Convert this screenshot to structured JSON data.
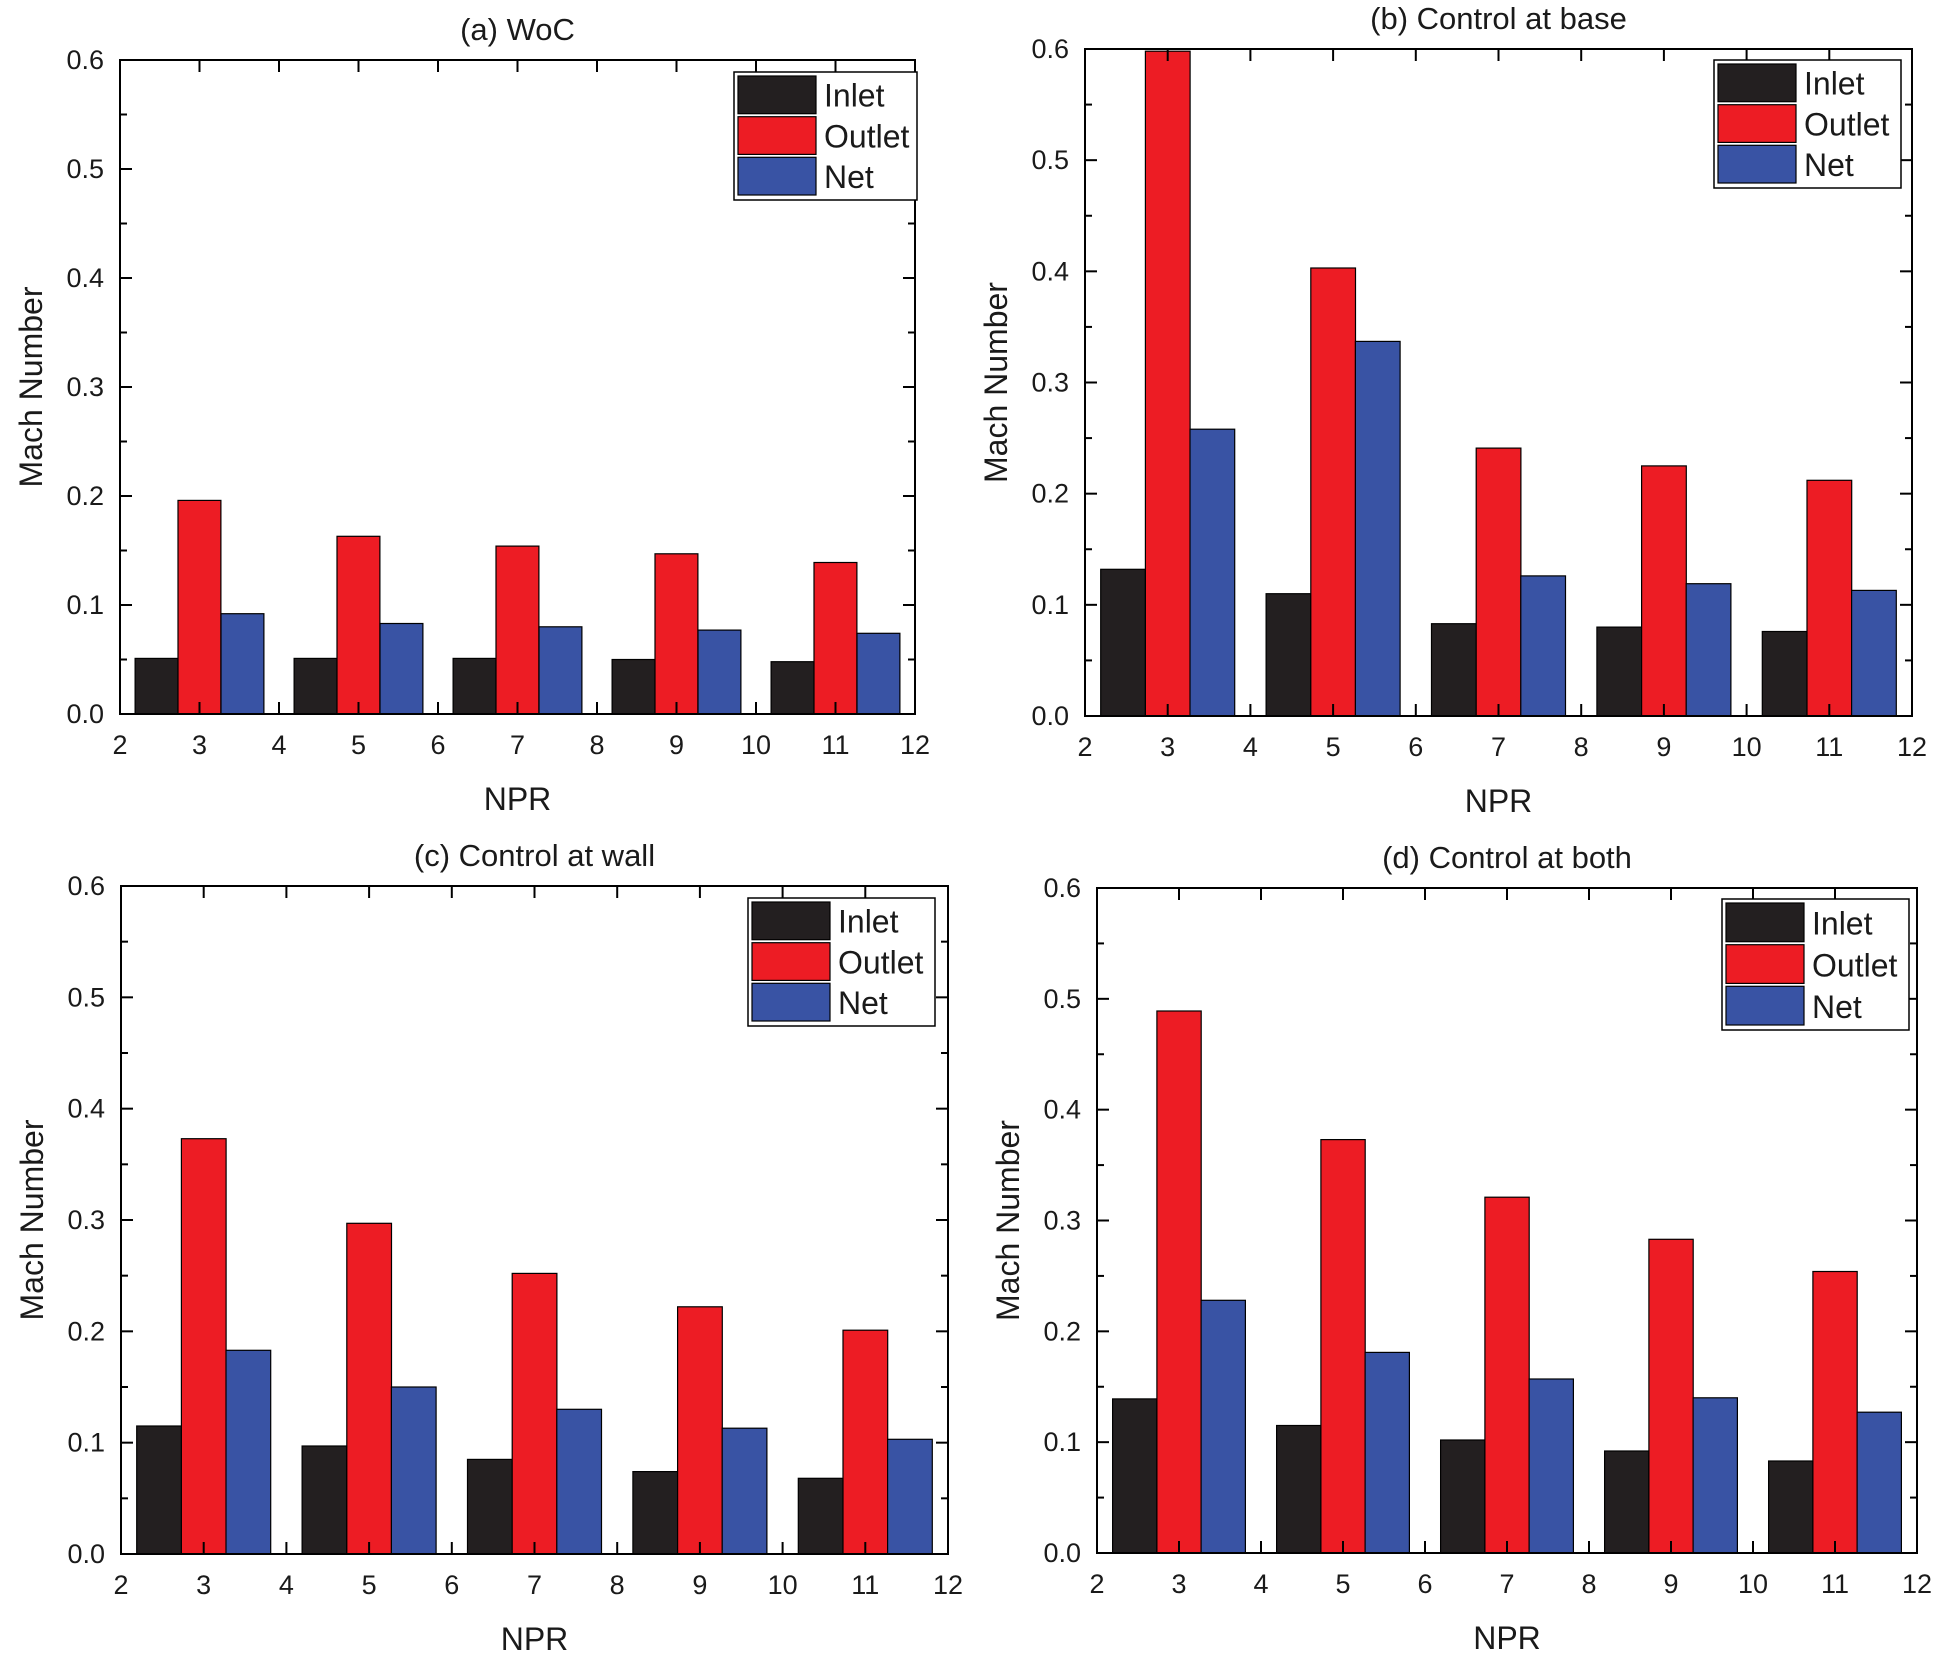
{
  "chart_data": [
    {
      "type": "bar",
      "title": "(a) WoC",
      "xlabel": "NPR",
      "ylabel": "Mach Number",
      "xlim": [
        2,
        12
      ],
      "ylim": [
        0,
        0.6
      ],
      "xticks": [
        "2",
        "3",
        "4",
        "5",
        "6",
        "7",
        "8",
        "9",
        "10",
        "11",
        "12"
      ],
      "yticks": [
        "0.0",
        "0.1",
        "0.2",
        "0.3",
        "0.4",
        "0.5",
        "0.6"
      ],
      "categories": [
        "3",
        "5",
        "7",
        "9",
        "11"
      ],
      "legend_position": "top-right",
      "series": [
        {
          "name": "Inlet",
          "color": "#231f20",
          "values": [
            0.051,
            0.051,
            0.051,
            0.05,
            0.048
          ]
        },
        {
          "name": "Outlet",
          "color": "#ed1c24",
          "values": [
            0.196,
            0.163,
            0.154,
            0.147,
            0.139
          ]
        },
        {
          "name": "Net",
          "color": "#3953a4",
          "values": [
            0.092,
            0.083,
            0.08,
            0.077,
            0.074
          ]
        }
      ]
    },
    {
      "type": "bar",
      "title": "(b) Control at base",
      "xlabel": "NPR",
      "ylabel": "Mach Number",
      "xlim": [
        2,
        12
      ],
      "ylim": [
        0,
        0.6
      ],
      "xticks": [
        "2",
        "3",
        "4",
        "5",
        "6",
        "7",
        "8",
        "9",
        "10",
        "11",
        "12"
      ],
      "yticks": [
        "0.0",
        "0.1",
        "0.2",
        "0.3",
        "0.4",
        "0.5",
        "0.6"
      ],
      "categories": [
        "3",
        "5",
        "7",
        "9",
        "11"
      ],
      "legend_position": "top-right",
      "series": [
        {
          "name": "Inlet",
          "color": "#231f20",
          "values": [
            0.132,
            0.11,
            0.083,
            0.08,
            0.076
          ]
        },
        {
          "name": "Outlet",
          "color": "#ed1c24",
          "values": [
            0.598,
            0.403,
            0.241,
            0.225,
            0.212
          ]
        },
        {
          "name": "Net",
          "color": "#3953a4",
          "values": [
            0.258,
            0.337,
            0.126,
            0.119,
            0.113
          ]
        }
      ]
    },
    {
      "type": "bar",
      "title": "(c) Control at wall",
      "xlabel": "NPR",
      "ylabel": "Mach Number",
      "xlim": [
        2,
        12
      ],
      "ylim": [
        0,
        0.6
      ],
      "xticks": [
        "2",
        "3",
        "4",
        "5",
        "6",
        "7",
        "8",
        "9",
        "10",
        "11",
        "12"
      ],
      "yticks": [
        "0.0",
        "0.1",
        "0.2",
        "0.3",
        "0.4",
        "0.5",
        "0.6"
      ],
      "categories": [
        "3",
        "5",
        "7",
        "9",
        "11"
      ],
      "legend_position": "top-right",
      "series": [
        {
          "name": "Inlet",
          "color": "#231f20",
          "values": [
            0.115,
            0.097,
            0.085,
            0.074,
            0.068
          ]
        },
        {
          "name": "Outlet",
          "color": "#ed1c24",
          "values": [
            0.373,
            0.297,
            0.252,
            0.222,
            0.201
          ]
        },
        {
          "name": "Net",
          "color": "#3953a4",
          "values": [
            0.183,
            0.15,
            0.13,
            0.113,
            0.103
          ]
        }
      ]
    },
    {
      "type": "bar",
      "title": "(d) Control at both",
      "xlabel": "NPR",
      "ylabel": "Mach Number",
      "xlim": [
        2,
        12
      ],
      "ylim": [
        0,
        0.6
      ],
      "xticks": [
        "2",
        "3",
        "4",
        "5",
        "6",
        "7",
        "8",
        "9",
        "10",
        "11",
        "12"
      ],
      "yticks": [
        "0.0",
        "0.1",
        "0.2",
        "0.3",
        "0.4",
        "0.5",
        "0.6"
      ],
      "categories": [
        "3",
        "5",
        "7",
        "9",
        "11"
      ],
      "legend_position": "top-right",
      "series": [
        {
          "name": "Inlet",
          "color": "#231f20",
          "values": [
            0.139,
            0.115,
            0.102,
            0.092,
            0.083
          ]
        },
        {
          "name": "Outlet",
          "color": "#ed1c24",
          "values": [
            0.489,
            0.373,
            0.321,
            0.283,
            0.254
          ]
        },
        {
          "name": "Net",
          "color": "#3953a4",
          "values": [
            0.228,
            0.181,
            0.157,
            0.14,
            0.127
          ]
        }
      ]
    }
  ]
}
